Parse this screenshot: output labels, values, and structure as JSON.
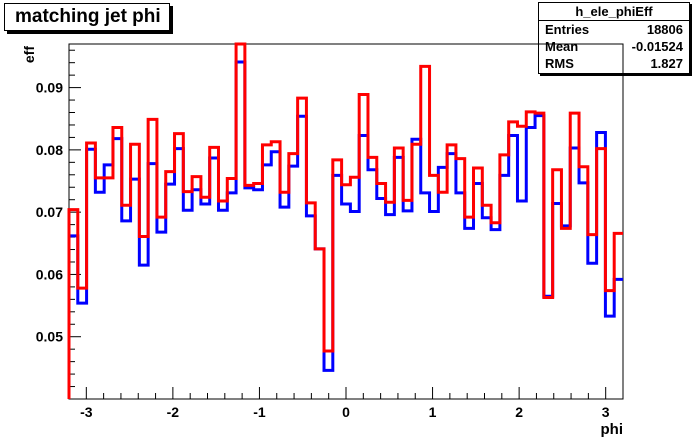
{
  "title": "matching jet phi",
  "stats": {
    "name": "h_ele_phiEff",
    "rows": [
      {
        "label": "Entries",
        "value": "18806"
      },
      {
        "label": "Mean",
        "value": "-0.01524"
      },
      {
        "label": "RMS",
        "value": "1.827"
      }
    ]
  },
  "chart_data": {
    "type": "line",
    "subtype": "step-histogram",
    "title": "matching jet phi",
    "xlabel": "phi",
    "ylabel": "eff",
    "xlim": [
      -3.2,
      3.2
    ],
    "ylim": [
      0.04,
      0.097
    ],
    "xticks": [
      -3,
      -2,
      -1,
      0,
      1,
      2,
      3
    ],
    "xtick_labels": [
      "-3",
      "-2",
      "-1",
      "0",
      "1",
      "2",
      "3"
    ],
    "yticks": [
      0.05,
      0.06,
      0.07,
      0.08,
      0.09
    ],
    "ytick_labels": [
      "0.05",
      "0.06",
      "0.07",
      "0.08",
      "0.09"
    ],
    "grid": false,
    "series": [
      {
        "color": "#0000ff",
        "values": [
          0.0662,
          0.0554,
          0.0801,
          0.0732,
          0.0776,
          0.0818,
          0.0686,
          0.0753,
          0.0615,
          0.0778,
          0.0668,
          0.0745,
          0.0802,
          0.0703,
          0.0736,
          0.0713,
          0.0787,
          0.0703,
          0.0731,
          0.0941,
          0.0739,
          0.0736,
          0.0776,
          0.0797,
          0.0708,
          0.0774,
          0.0854,
          0.0694,
          0.0641,
          0.0446,
          0.0759,
          0.0713,
          0.0701,
          0.0823,
          0.0768,
          0.0722,
          0.0696,
          0.0788,
          0.0702,
          0.0817,
          0.0731,
          0.0701,
          0.0772,
          0.0794,
          0.0731,
          0.0674,
          0.0746,
          0.0691,
          0.0672,
          0.0759,
          0.0823,
          0.0718,
          0.0836,
          0.0855,
          0.0565,
          0.0714,
          0.0678,
          0.0803,
          0.0747,
          0.0618,
          0.0828,
          0.0533,
          0.0592
        ]
      },
      {
        "color": "#ff0000",
        "values": [
          0.0704,
          0.0578,
          0.0811,
          0.0755,
          0.0755,
          0.0836,
          0.0711,
          0.0809,
          0.0661,
          0.0849,
          0.0692,
          0.0765,
          0.0826,
          0.0733,
          0.0757,
          0.0724,
          0.0804,
          0.0718,
          0.0754,
          0.0971,
          0.0743,
          0.0746,
          0.0808,
          0.0813,
          0.0732,
          0.0794,
          0.0883,
          0.0715,
          0.0641,
          0.0477,
          0.0784,
          0.0744,
          0.0756,
          0.0889,
          0.0788,
          0.0746,
          0.0716,
          0.0803,
          0.0719,
          0.0809,
          0.0934,
          0.0759,
          0.0732,
          0.0808,
          0.0786,
          0.0692,
          0.0771,
          0.0711,
          0.0683,
          0.0792,
          0.0845,
          0.0838,
          0.0861,
          0.0859,
          0.0563,
          0.0768,
          0.0674,
          0.0859,
          0.0773,
          0.0664,
          0.0802,
          0.0574,
          0.0666
        ]
      }
    ]
  }
}
